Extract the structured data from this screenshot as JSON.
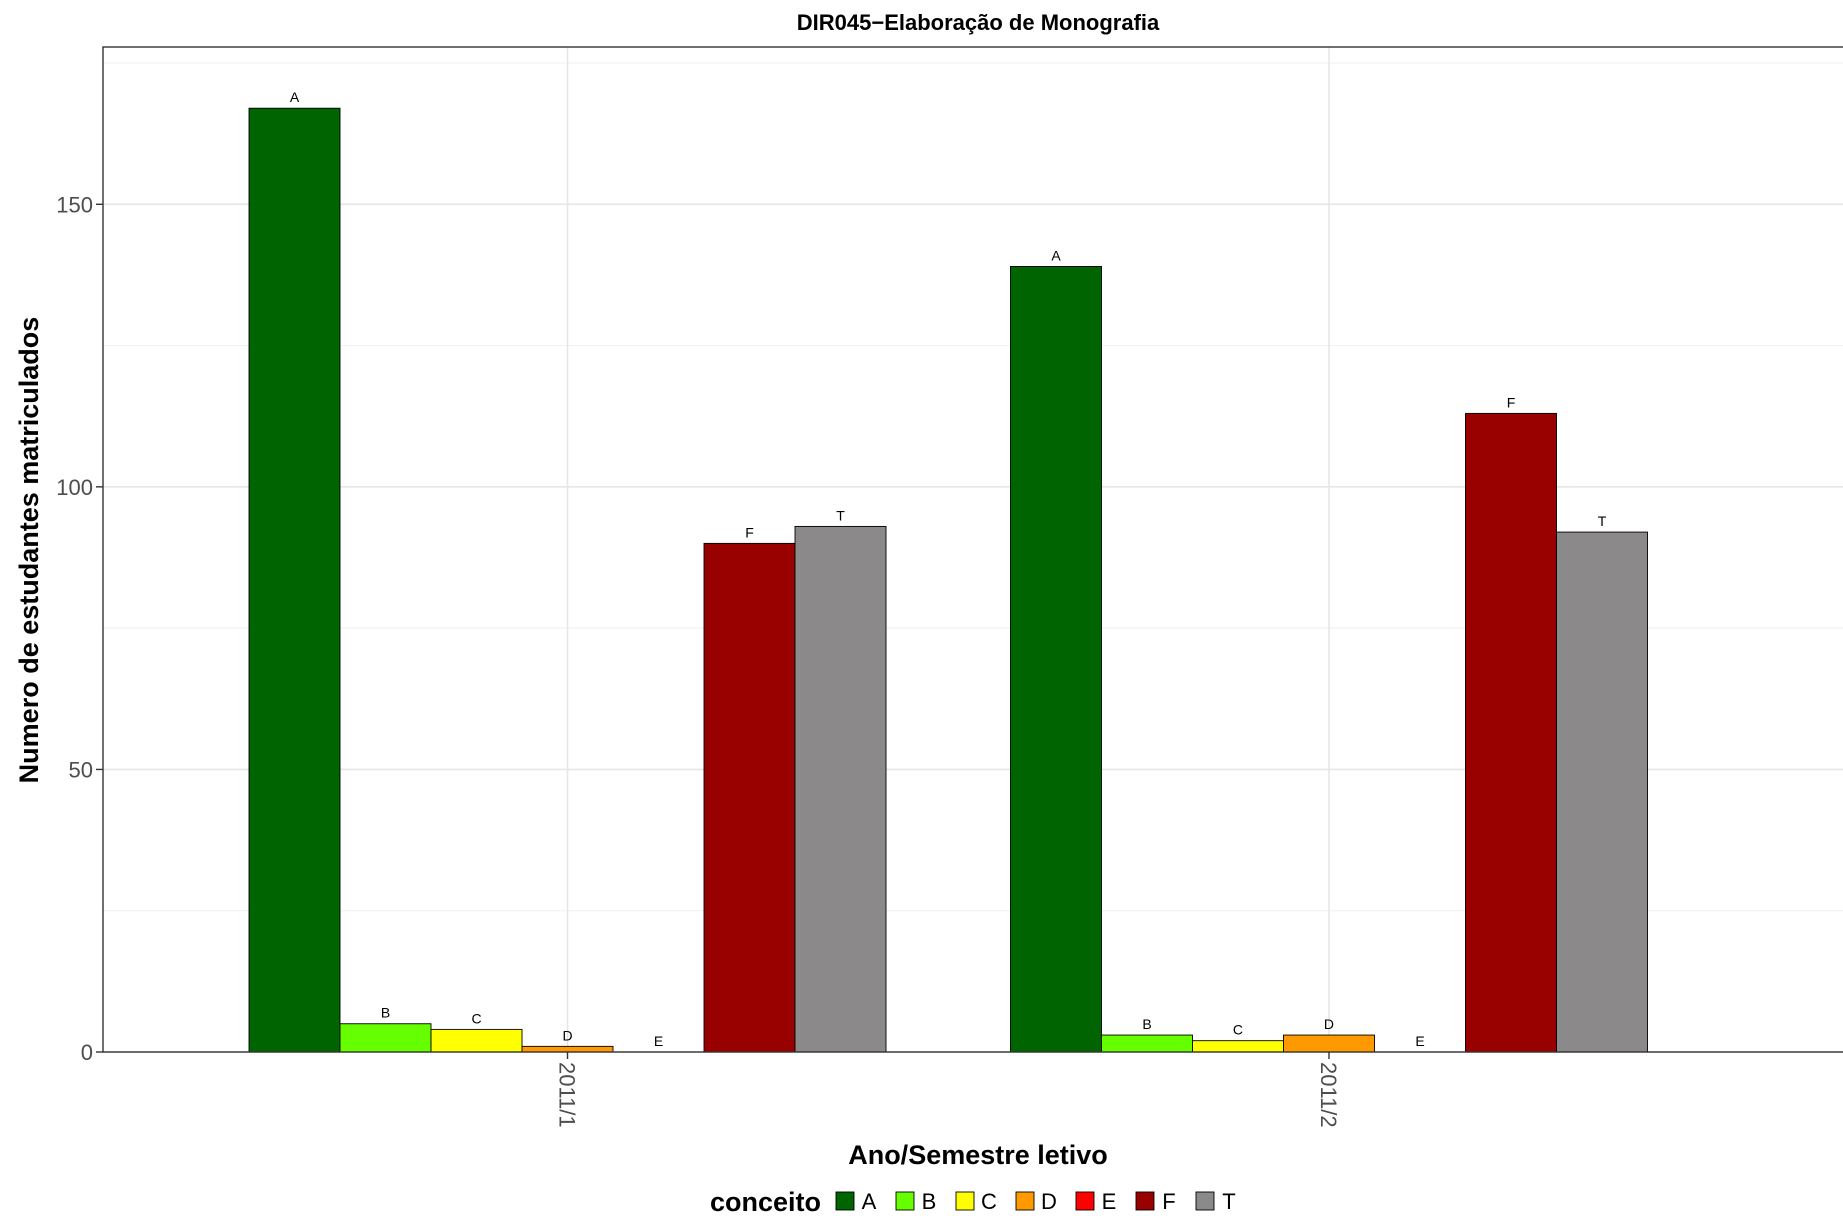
{
  "chart_data": {
    "type": "bar",
    "title": "DIR045−Elaboração de Monografia",
    "xlabel": "Ano/Semestre letivo",
    "ylabel": "Numero de estudantes matriculados",
    "categories": [
      "2011/1",
      "2011/2"
    ],
    "ylim": [
      0,
      175
    ],
    "yticks": [
      0,
      50,
      100,
      150
    ],
    "grid": true,
    "legend_title": "conceito",
    "legend_position": "bottom",
    "series": [
      {
        "name": "A",
        "color": "#006400",
        "values": [
          167,
          139
        ]
      },
      {
        "name": "B",
        "color": "#66ff00",
        "values": [
          5,
          3
        ]
      },
      {
        "name": "C",
        "color": "#ffff00",
        "values": [
          4,
          2
        ]
      },
      {
        "name": "D",
        "color": "#ff9900",
        "values": [
          1,
          3
        ]
      },
      {
        "name": "E",
        "color": "#ff0000",
        "values": [
          0,
          0
        ]
      },
      {
        "name": "F",
        "color": "#990000",
        "values": [
          90,
          113
        ]
      },
      {
        "name": "T",
        "color": "#8b8989",
        "values": [
          93,
          92
        ]
      }
    ]
  }
}
